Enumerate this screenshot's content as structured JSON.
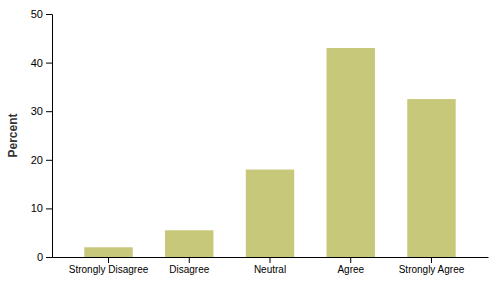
{
  "chart_data": {
    "type": "bar",
    "categories": [
      "Strongly Disagree",
      "Disagree",
      "Neutral",
      "Agree",
      "Strongly Agree"
    ],
    "values": [
      2.0,
      5.5,
      18.0,
      43.0,
      32.5
    ],
    "color": "#c8c87a",
    "ylabel": "Percent",
    "ylim": [
      0,
      50
    ],
    "yticks": [
      0,
      10,
      20,
      30,
      40,
      50
    ],
    "grid": false
  }
}
